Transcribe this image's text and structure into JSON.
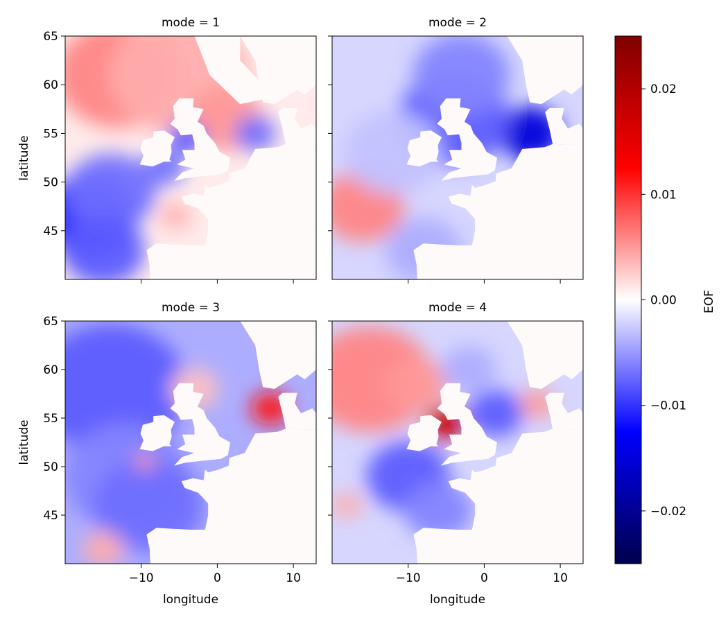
{
  "chart_data": {
    "type": "heatmap",
    "layout": "2x2 facet grid, shared axes, single colorbar at right",
    "colormap": "seismic",
    "xlabel": "longitude",
    "ylabel": "latitude",
    "xlim": [
      -20,
      13
    ],
    "ylim": [
      40,
      65
    ],
    "x_ticks": [
      -10,
      0,
      10
    ],
    "x_tick_labels": [
      "−10",
      "0",
      "10"
    ],
    "y_ticks": [
      45,
      50,
      55,
      60,
      65
    ],
    "y_tick_labels": [
      "45",
      "50",
      "55",
      "60",
      "65"
    ],
    "grid": false,
    "colorbar": {
      "label": "EOF",
      "range": [
        -0.025,
        0.025
      ],
      "ticks": [
        -0.02,
        -0.01,
        0.0,
        0.01,
        0.02
      ],
      "tick_labels": [
        "−0.02",
        "−0.01",
        "0.00",
        "0.01",
        "0.02"
      ]
    },
    "panels": [
      {
        "title": "mode = 1",
        "features": [
          {
            "lon": -17,
            "lat": 46.5,
            "value": -0.011
          },
          {
            "lon": -14,
            "lat": 49,
            "value": -0.007
          },
          {
            "lon": -15,
            "lat": 43,
            "value": -0.008
          },
          {
            "lon": -13,
            "lat": 61,
            "value": 0.006
          },
          {
            "lon": -5,
            "lat": 61,
            "value": 0.004
          },
          {
            "lon": 1,
            "lat": 56.5,
            "value": 0.005
          },
          {
            "lon": 5,
            "lat": 55,
            "value": -0.007
          },
          {
            "lon": -4,
            "lat": 54.5,
            "value": -0.008
          },
          {
            "lon": -7,
            "lat": 51.5,
            "value": -0.007
          },
          {
            "lon": -5.5,
            "lat": 46.5,
            "value": 0.004
          }
        ]
      },
      {
        "title": "mode = 2",
        "features": [
          {
            "lon": 6,
            "lat": 55,
            "value": -0.015
          },
          {
            "lon": -4,
            "lat": 56.5,
            "value": -0.008
          },
          {
            "lon": -3,
            "lat": 61,
            "value": -0.006
          },
          {
            "lon": -16,
            "lat": 47.5,
            "value": 0.006
          },
          {
            "lon": -12,
            "lat": 53,
            "value": -0.003
          },
          {
            "lon": -8,
            "lat": 43,
            "value": -0.004
          }
        ]
      },
      {
        "title": "mode = 3",
        "features": [
          {
            "lon": 7,
            "lat": 56,
            "value": 0.012
          },
          {
            "lon": 8,
            "lat": 64,
            "value": 0.004
          },
          {
            "lon": -14,
            "lat": 58,
            "value": -0.008
          },
          {
            "lon": -12,
            "lat": 49,
            "value": -0.006
          },
          {
            "lon": -9,
            "lat": 46,
            "value": -0.007
          },
          {
            "lon": -3,
            "lat": 58,
            "value": 0.003
          },
          {
            "lon": -9.5,
            "lat": 50.5,
            "value": 0.005
          },
          {
            "lon": -15,
            "lat": 41.5,
            "value": 0.004
          }
        ]
      },
      {
        "title": "mode = 4",
        "features": [
          {
            "lon": -5,
            "lat": 54.5,
            "value": 0.018
          },
          {
            "lon": -15,
            "lat": 59,
            "value": 0.006
          },
          {
            "lon": -9,
            "lat": 58.5,
            "value": 0.005
          },
          {
            "lon": 1.5,
            "lat": 55.5,
            "value": -0.008
          },
          {
            "lon": -10,
            "lat": 49,
            "value": -0.008
          },
          {
            "lon": -6,
            "lat": 45.5,
            "value": -0.006
          },
          {
            "lon": -2,
            "lat": 60,
            "value": -0.004
          },
          {
            "lon": 7,
            "lat": 56.5,
            "value": 0.005
          },
          {
            "lon": -18,
            "lat": 46,
            "value": 0.004
          }
        ]
      }
    ]
  }
}
